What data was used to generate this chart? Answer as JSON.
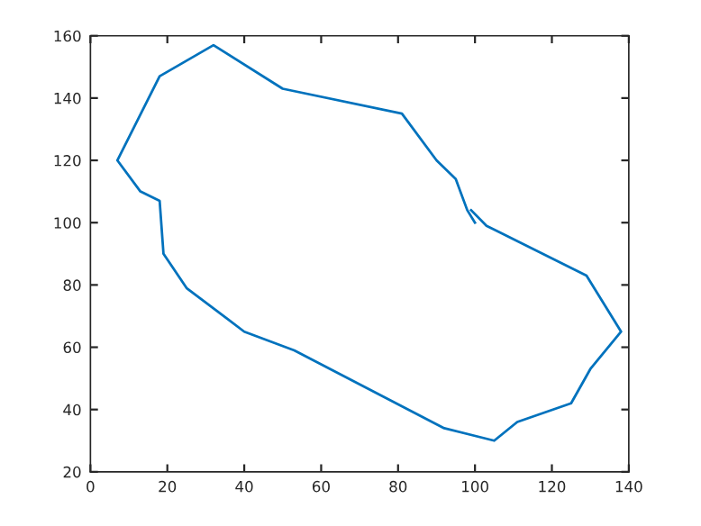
{
  "chart_data": {
    "type": "line",
    "x": [
      100,
      98,
      95,
      90,
      81,
      50,
      32,
      18,
      7,
      13,
      18,
      19,
      25,
      40,
      53,
      92,
      105,
      111,
      125,
      130,
      138,
      129,
      103,
      99
    ],
    "values": [
      100,
      104,
      114,
      120,
      135,
      143,
      157,
      147,
      120,
      110,
      107,
      90,
      79,
      65,
      59,
      34,
      30,
      36,
      42,
      53,
      65,
      83,
      99,
      104
    ],
    "color": "#0072bd",
    "xlim": [
      0,
      140
    ],
    "xticks": [
      0,
      20,
      40,
      60,
      80,
      100,
      120,
      140
    ],
    "ylim": [
      20,
      160
    ],
    "yticks": [
      20,
      40,
      60,
      80,
      100,
      120,
      140,
      160
    ],
    "grid": false,
    "marker": "none",
    "line_style": "solid"
  }
}
